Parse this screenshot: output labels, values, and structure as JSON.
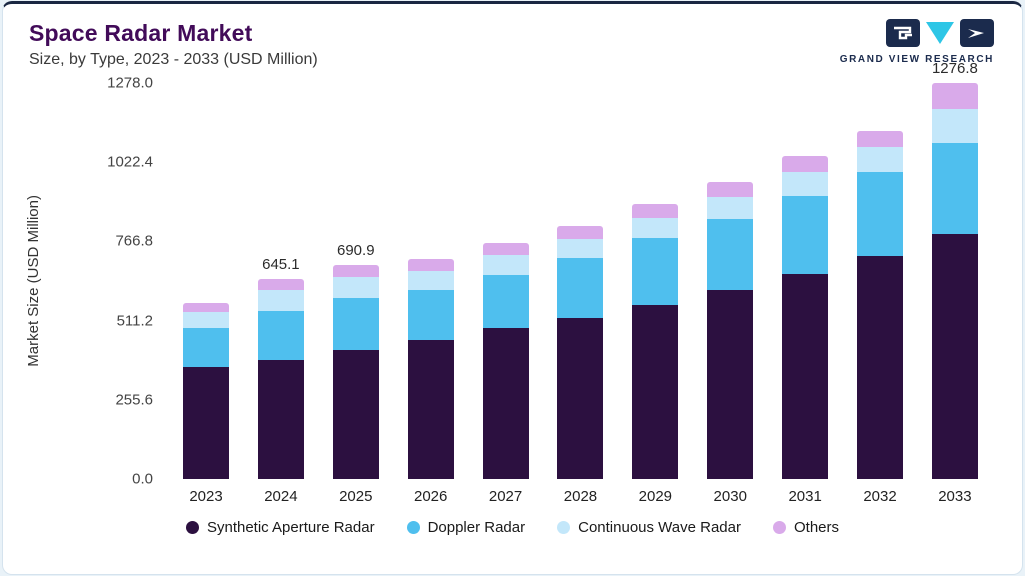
{
  "header": {
    "title": "Space Radar Market",
    "subtitle": "Size, by Type, 2023 - 2033 (USD Million)",
    "logo_text": "GRAND VIEW RESEARCH"
  },
  "colors": {
    "accent_top_bar": "#1a2742",
    "title": "#420b59",
    "logo_navy": "#1b2b4d",
    "logo_teal": "#2ec6e6"
  },
  "chart_data": {
    "type": "bar",
    "stacked": true,
    "title": "Space Radar Market Size, by Type, 2023 - 2033 (USD Million)",
    "xlabel": "",
    "ylabel": "Market Size (USD Million)",
    "ylim": [
      0,
      1278.0
    ],
    "yticks": [
      0.0,
      255.6,
      511.2,
      766.8,
      1022.4,
      1278.0
    ],
    "grid": false,
    "legend_position": "bottom",
    "categories": [
      "2023",
      "2024",
      "2025",
      "2026",
      "2027",
      "2028",
      "2029",
      "2030",
      "2031",
      "2032",
      "2033"
    ],
    "bar_labels": [
      "",
      "645.1",
      "690.9",
      "",
      "",
      "",
      "",
      "",
      "",
      "",
      "1276.8"
    ],
    "labeled_totals": {
      "2024": 645.1,
      "2025": 690.9,
      "2033": 1276.8
    },
    "series": [
      {
        "name": "Synthetic Aperture Radar",
        "color": "#2c1040",
        "values": [
          360,
          385,
          415,
          448,
          487,
          520,
          562,
          610,
          663,
          720,
          790
        ]
      },
      {
        "name": "Doppler Radar",
        "color": "#4fbfee",
        "values": [
          128,
          158,
          168,
          162,
          170,
          192,
          215,
          230,
          252,
          272,
          295
        ]
      },
      {
        "name": "Continuous Wave Radar",
        "color": "#c3e7fa",
        "values": [
          52,
          67,
          70,
          62,
          65,
          64,
          67,
          70,
          76,
          78,
          110
        ]
      },
      {
        "name": "Others",
        "color": "#d9aaea",
        "values": [
          28,
          35.1,
          37.9,
          38,
          40,
          42,
          45,
          48,
          50,
          52,
          81.8
        ]
      }
    ]
  }
}
